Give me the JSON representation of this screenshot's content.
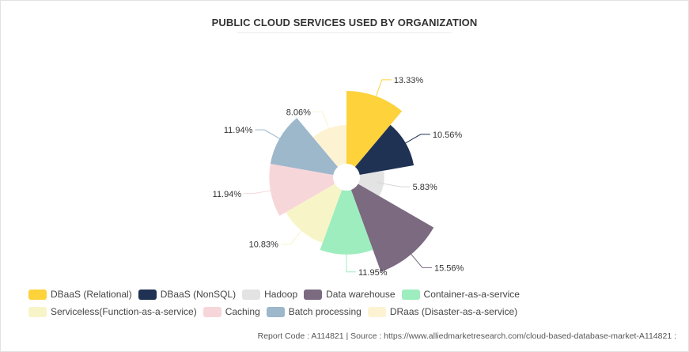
{
  "chart_data": {
    "type": "polar-area",
    "title": "PUBLIC CLOUD SERVICES USED BY ORGANIZATION",
    "categories": [
      "DBaaS (Relational)",
      "DBaaS (NonSQL)",
      "Hadoop",
      "Data warehouse",
      "Container-as-a-service",
      "Serviceless(Function-as-a-service)",
      "Caching",
      "Batch processing",
      "DRaas (Disaster-as-a-service)"
    ],
    "values": [
      13.33,
      10.56,
      5.83,
      15.56,
      11.95,
      10.83,
      11.94,
      11.94,
      8.06
    ],
    "labels": [
      "13.33%",
      "10.56%",
      "5.83%",
      "15.56%",
      "11.95%",
      "10.83%",
      "11.94%",
      "11.94%",
      "8.06%"
    ],
    "colors": [
      "#fdd23a",
      "#1f3254",
      "#e3e3e3",
      "#7b6a80",
      "#9eedbf",
      "#f7f5c8",
      "#f7d6da",
      "#9db7cb",
      "#fdf3d3"
    ],
    "legend_position": "bottom"
  },
  "footer": {
    "text": "Report Code : A114821  |  Source : https://www.alliedmarketresearch.com/cloud-based-database-market-A114821 :"
  }
}
